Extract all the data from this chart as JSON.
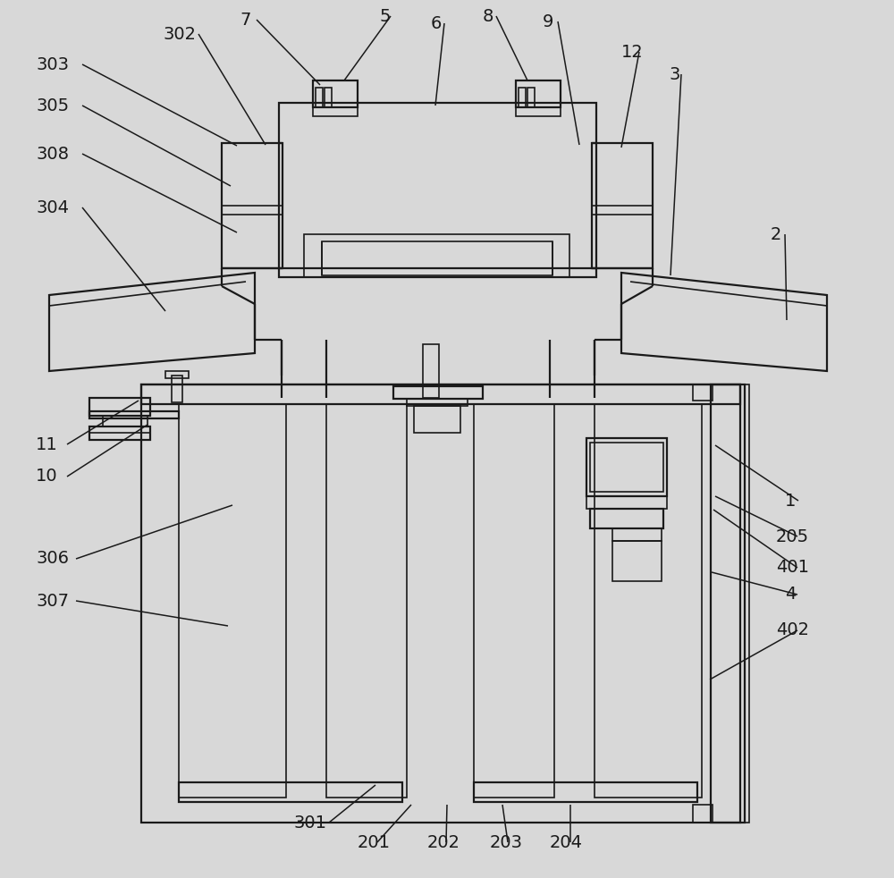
{
  "bg_color": "#d8d8d8",
  "line_color": "#1a1a1a",
  "lw": 1.6,
  "lw2": 1.2,
  "lwl": 1.1,
  "fs": 14
}
